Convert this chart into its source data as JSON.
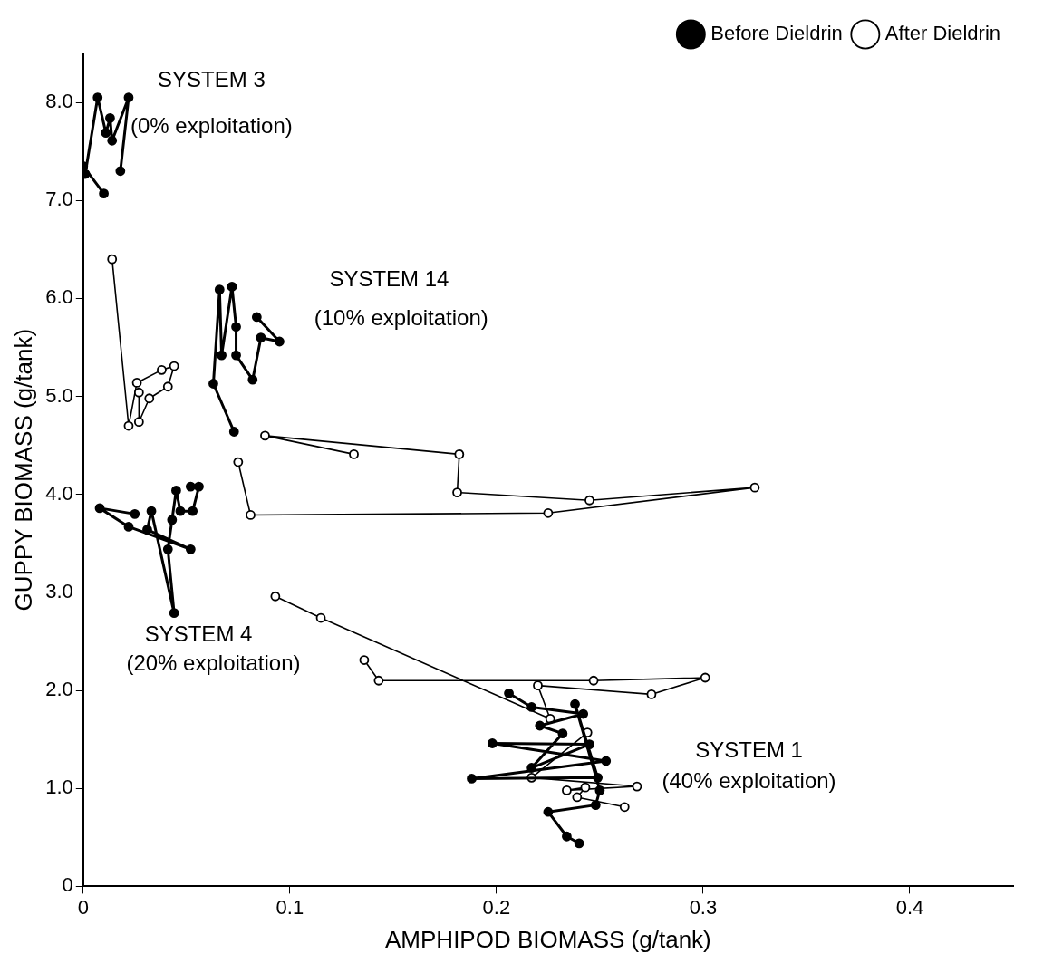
{
  "chart_data": {
    "type": "line",
    "xlabel": "AMPHIPOD BIOMASS (g/tank)",
    "ylabel": "GUPPY BIOMASS (g/tank)",
    "xlim": [
      0,
      0.45
    ],
    "xticks": [
      0,
      0.1,
      0.2,
      0.3,
      0.4
    ],
    "ylim": [
      0,
      8.5
    ],
    "yticks": [
      0,
      {
        "value": 1,
        "label": "1.0"
      },
      {
        "value": 2,
        "label": "2.0"
      },
      {
        "value": 3,
        "label": "3.0"
      },
      {
        "value": 4,
        "label": "4.0"
      },
      {
        "value": 5,
        "label": "5.0"
      },
      {
        "value": 6,
        "label": "6.0"
      },
      {
        "value": 7,
        "label": "7.0"
      },
      {
        "value": 8,
        "label": "8.0"
      }
    ],
    "grid": false,
    "legend": "top right",
    "marker": "circle",
    "line_style": "solid",
    "series": [
      {
        "name": "Before Dieldrin",
        "color": "#000000",
        "x": [
          0.01,
          0.0,
          0.001,
          0.007,
          0.011,
          0.013,
          0.014,
          0.022,
          0.018,
          null,
          0.084,
          0.095,
          0.086,
          0.082,
          0.074,
          0.074,
          0.072,
          0.067,
          0.066,
          0.063,
          0.073,
          null,
          0.052,
          0.056,
          0.053,
          0.047,
          0.045,
          0.043,
          0.041,
          0.044,
          0.033,
          0.031,
          0.052,
          0.022,
          0.008,
          0.025,
          null,
          0.206,
          0.217,
          0.242,
          0.221,
          0.232,
          0.217,
          0.245,
          0.198,
          0.253,
          0.188,
          0.249,
          0.238,
          0.25,
          0.248,
          0.225,
          0.234,
          0.24
        ],
        "values": [
          7.07,
          7.35,
          7.27,
          8.05,
          7.69,
          7.84,
          7.61,
          8.05,
          7.3,
          null,
          5.81,
          5.56,
          5.6,
          5.17,
          5.42,
          5.71,
          6.12,
          5.42,
          6.09,
          5.13,
          4.64,
          null,
          4.08,
          4.08,
          3.83,
          3.83,
          4.04,
          3.74,
          3.44,
          2.79,
          3.83,
          3.64,
          3.44,
          3.67,
          3.86,
          3.8,
          null,
          1.97,
          1.83,
          1.76,
          1.64,
          1.56,
          1.21,
          1.45,
          1.46,
          1.28,
          1.1,
          1.11,
          1.86,
          0.98,
          0.83,
          0.76,
          0.51,
          0.44
        ]
      },
      {
        "name": "After Dieldrin",
        "color": "#000000",
        "x": [
          0.014,
          0.022,
          0.026,
          0.038,
          0.044,
          0.041,
          0.032,
          0.027,
          0.027,
          null,
          0.075,
          0.081,
          0.225,
          0.325,
          0.245,
          0.181,
          0.182,
          0.088,
          0.131,
          null,
          0.093,
          0.115,
          0.226,
          0.22,
          0.275,
          0.301,
          0.247,
          0.143,
          0.136,
          null,
          0.244,
          0.217,
          0.268,
          0.234,
          0.243,
          0.239,
          0.262
        ],
        "values": [
          6.4,
          4.7,
          5.14,
          5.27,
          5.31,
          5.1,
          4.98,
          4.74,
          5.04,
          null,
          4.33,
          3.79,
          3.81,
          4.07,
          3.94,
          4.02,
          4.41,
          4.6,
          4.41,
          null,
          2.96,
          2.74,
          1.71,
          2.05,
          1.96,
          2.13,
          2.1,
          2.1,
          2.31,
          null,
          1.57,
          1.11,
          1.02,
          0.98,
          1.01,
          0.91,
          0.81
        ]
      }
    ],
    "annotations": [
      "SYSTEM 3",
      "(0% exploitation)",
      "SYSTEM 14",
      "(10% exploitation)",
      "SYSTEM 4",
      "(20% exploitation)",
      "SYSTEM 1",
      "(40% exploitation)"
    ]
  }
}
